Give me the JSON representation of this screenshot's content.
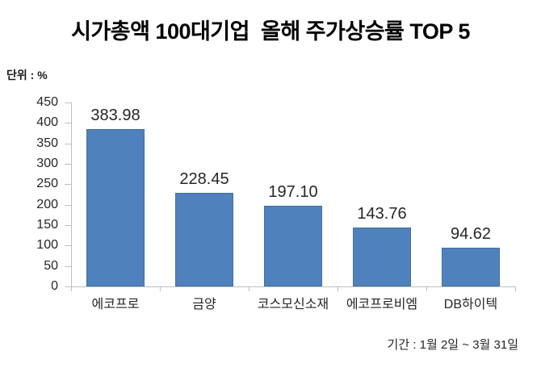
{
  "title": "시가총액 100대기업  올해 주가상승률 TOP 5",
  "unit_label": "단위 : %",
  "period_label": "기간 : 1월 2일 ~ 3월 31일",
  "chart_data": {
    "type": "bar",
    "title": "시가총액 100대기업  올해 주가상승률 TOP 5",
    "categories": [
      "에코프로",
      "금양",
      "코스모신소재",
      "에코프로비엠",
      "DB하이텍"
    ],
    "values": [
      383.98,
      228.45,
      197.1,
      143.76,
      94.62
    ],
    "value_labels": [
      "383.98",
      "228.45",
      "197.10",
      "143.76",
      "94.62"
    ],
    "xlabel": "",
    "ylabel": "단위 : %",
    "ylim": [
      0,
      450
    ],
    "yticks": [
      0,
      50,
      100,
      150,
      200,
      250,
      300,
      350,
      400,
      450
    ],
    "grid": false,
    "legend": false,
    "bar_color": "#4f81bd",
    "axis_color": "#bfbfbf",
    "footnote": "기간 : 1월 2일 ~ 3월 31일"
  }
}
